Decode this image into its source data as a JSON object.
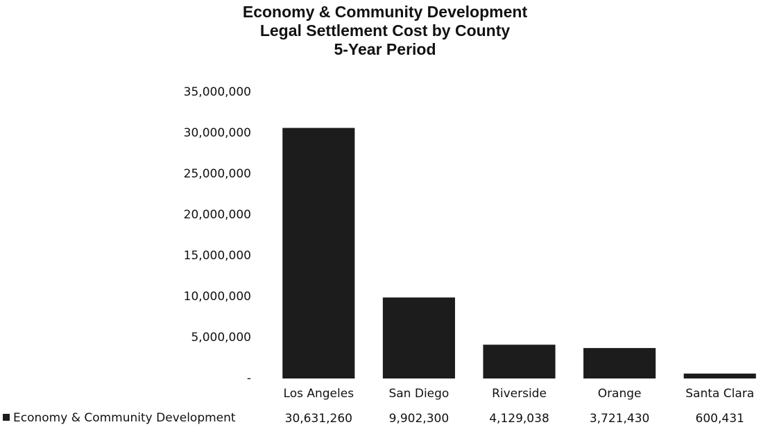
{
  "chart_data": {
    "type": "bar",
    "title": [
      "Economy & Community Development",
      "Legal Settlement Cost by County",
      "5-Year Period"
    ],
    "categories": [
      "Los Angeles",
      "San Diego",
      "Riverside",
      "Orange",
      "Santa Clara"
    ],
    "series": [
      {
        "name": "Economy & Community Development",
        "color": "#1c1c1c",
        "values": [
          30631260,
          9902300,
          4129038,
          3721430,
          600431
        ],
        "value_labels": [
          "30,631,260",
          "9,902,300",
          "4,129,038",
          "3,721,430",
          "600,431"
        ]
      }
    ],
    "ylim": [
      0,
      35000000
    ],
    "yticks": [
      {
        "value": 0,
        "label": "-"
      },
      {
        "value": 5000000,
        "label": "5,000,000"
      },
      {
        "value": 10000000,
        "label": "10,000,000"
      },
      {
        "value": 15000000,
        "label": "15,000,000"
      },
      {
        "value": 20000000,
        "label": "20,000,000"
      },
      {
        "value": 25000000,
        "label": "25,000,000"
      },
      {
        "value": 30000000,
        "label": "30,000,000"
      },
      {
        "value": 35000000,
        "label": "35,000,000"
      }
    ],
    "grid": false
  }
}
